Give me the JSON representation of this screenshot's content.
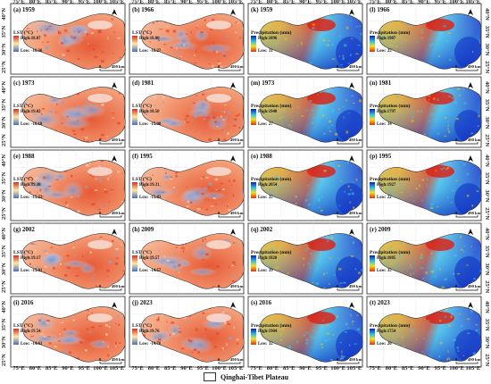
{
  "x_ticks": [
    "75°E",
    "80°E",
    "85°E",
    "90°E",
    "95°E",
    "100°E",
    "105°E"
  ],
  "y_ticks": [
    "40°N",
    "35°N",
    "30°N",
    "25°N"
  ],
  "lst_legend_title": "LST (°C)",
  "precip_legend_title": "Precipitation (mm)",
  "scale_label": "490 km",
  "scale_zero": "0",
  "lst_panels": [
    {
      "label": "(a) 1959",
      "high": "High:18.87",
      "low": "Low: -16.36"
    },
    {
      "label": "(b) 1966",
      "high": "High:18.80",
      "low": "Low: -16.27"
    },
    {
      "label": "(c) 1973",
      "high": "High:19.02",
      "low": "Low: -16.18"
    },
    {
      "label": "(d) 1981",
      "high": "High:18.50",
      "low": "Low: -15.90"
    },
    {
      "label": "(e) 1988",
      "high": "High:19.38",
      "low": "Low: -15.22"
    },
    {
      "label": "(f) 1995",
      "high": "High:19.31",
      "low": "Low: -15.83"
    },
    {
      "label": "(g) 2002",
      "high": "High:19.17",
      "low": "Low: -15.02"
    },
    {
      "label": "(h) 2009",
      "high": "High:19.57",
      "low": "Low: -14.57"
    },
    {
      "label": "(i) 2016",
      "high": "High:19.54",
      "low": "Low: -14.62"
    },
    {
      "label": "(j) 2023",
      "high": "High:19.76",
      "low": "Low: -14.78"
    }
  ],
  "precip_panels": [
    {
      "label": "(k) 1959",
      "high": "High:1896",
      "low": "Low: 31"
    },
    {
      "label": "(l) 1966",
      "high": "High:1987",
      "low": "Low: 25"
    },
    {
      "label": "(m) 1973",
      "high": "High:1948",
      "low": "Low: 27"
    },
    {
      "label": "(n) 1981",
      "high": "High:1797",
      "low": "Low: 34"
    },
    {
      "label": "(o) 1988",
      "high": "High:2054",
      "low": "Low: 35"
    },
    {
      "label": "(p) 1995",
      "high": "High:1927",
      "low": "Low: 22"
    },
    {
      "label": "(q) 2002",
      "high": "High:1820",
      "low": "Low: 39"
    },
    {
      "label": "(r) 2009",
      "high": "High:1885",
      "low": "Low: 35"
    },
    {
      "label": "(s) 2016",
      "high": "High:1904",
      "low": "Low: 32"
    },
    {
      "label": "(t) 2023",
      "high": "High:1754",
      "low": "Low: 20"
    }
  ],
  "bottom_legend": "Qinghai-Tibet Plateau",
  "colors": {
    "lst_high": "#e8442a",
    "lst_mid": "#f7e7b0",
    "lst_low": "#6a86c8",
    "pr_high": "#1030c0",
    "pr_mid": "#40e0d0",
    "pr_low": "#f05020",
    "pr_yellow": "#f0e020"
  }
}
